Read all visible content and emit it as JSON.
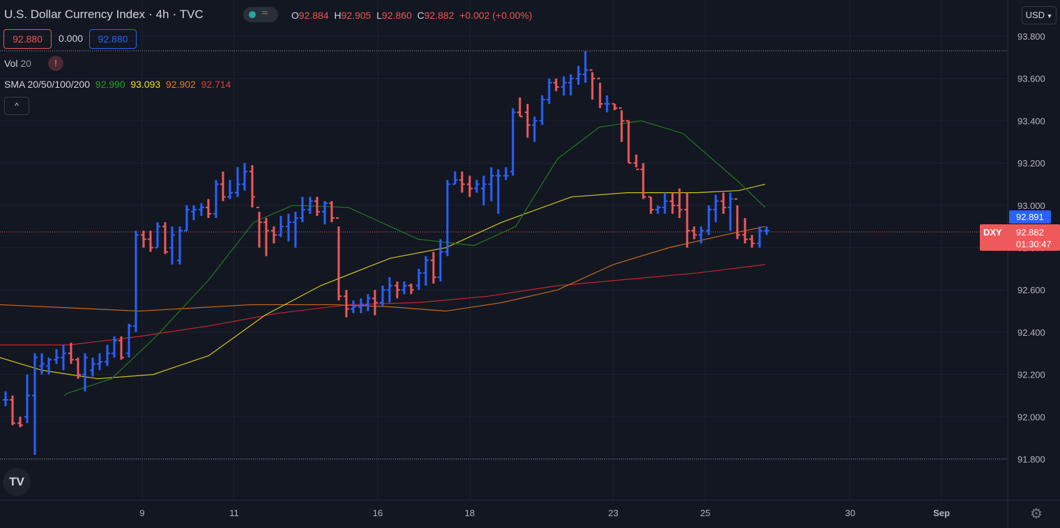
{
  "header": {
    "symbol_title": "U.S. Dollar Currency Index",
    "separator": "·",
    "interval": "4h",
    "exchange": "TVC",
    "ohlc": {
      "o_label": "O",
      "o_value": "92.884",
      "h_label": "H",
      "h_value": "92.905",
      "l_label": "L",
      "l_value": "92.860",
      "c_label": "C",
      "c_value": "92.882",
      "change": "+0.002 (+0.00%)"
    }
  },
  "quote_boxes": {
    "sell": "92.880",
    "spread": "0.000",
    "buy": "92.880"
  },
  "volume": {
    "label": "Vol",
    "length": "20",
    "warning_icon": "exclamation-icon"
  },
  "sma": {
    "label": "SMA 20/50/100/200",
    "v20": "92.990",
    "v50": "93.093",
    "v100": "92.902",
    "v200": "92.714"
  },
  "controls": {
    "collapse_icon": "chevron-up-icon",
    "currency": "USD",
    "currency_icon": "chevron-down-icon",
    "settings_icon": "gear-icon",
    "logo": "TV",
    "logo_icon": "tradingview-logo-icon"
  },
  "colors": {
    "background": "#131722",
    "up": "#2962ff",
    "down": "#f0595b",
    "sma20": "#1f7a1f",
    "sma50": "#d4c714",
    "sma100": "#c96a1c",
    "sma200": "#c8252b",
    "grid": "#1e2230"
  },
  "chart_data": {
    "type": "ohlc-bar",
    "y_ticks": [
      "93.800",
      "93.600",
      "93.400",
      "93.200",
      "93.000",
      "92.800",
      "92.600",
      "92.400",
      "92.200",
      "92.000",
      "91.800"
    ],
    "ylim": [
      91.8,
      93.8
    ],
    "x_ticks": [
      "9",
      "11",
      "16",
      "18",
      "23",
      "25",
      "30",
      "Sep"
    ],
    "price_labels": {
      "ask": "92.891",
      "symbol": "DXY",
      "last": "92.882",
      "countdown": "01:30:47"
    },
    "bars": [
      [
        92.08,
        92.12,
        92.05,
        92.08
      ],
      [
        92.08,
        92.1,
        91.96,
        91.97
      ],
      [
        91.97,
        92.0,
        91.95,
        91.96
      ],
      [
        92.0,
        92.2,
        91.97,
        92.1
      ],
      [
        92.1,
        92.3,
        91.82,
        92.28
      ],
      [
        92.24,
        92.3,
        92.2,
        92.25
      ],
      [
        92.24,
        92.28,
        92.2,
        92.27
      ],
      [
        92.27,
        92.32,
        92.25,
        92.28
      ],
      [
        92.28,
        92.34,
        92.22,
        92.3
      ],
      [
        92.3,
        92.35,
        92.25,
        92.27
      ],
      [
        92.27,
        92.28,
        92.18,
        92.2
      ],
      [
        92.2,
        92.3,
        92.12,
        92.28
      ],
      [
        92.22,
        92.28,
        92.19,
        92.25
      ],
      [
        92.25,
        92.3,
        92.22,
        92.26
      ],
      [
        92.26,
        92.34,
        92.24,
        92.3
      ],
      [
        92.3,
        92.38,
        92.28,
        92.36
      ],
      [
        92.36,
        92.38,
        92.27,
        92.28
      ],
      [
        92.3,
        92.44,
        92.28,
        92.43
      ],
      [
        92.43,
        92.88,
        92.4,
        92.86
      ],
      [
        92.86,
        92.88,
        92.8,
        92.84
      ],
      [
        92.84,
        92.88,
        92.78,
        92.8
      ],
      [
        92.8,
        92.92,
        92.8,
        92.9
      ],
      [
        92.9,
        92.92,
        92.77,
        92.78
      ],
      [
        92.8,
        92.9,
        92.72,
        92.86
      ],
      [
        92.74,
        92.9,
        92.72,
        92.88
      ],
      [
        92.88,
        93.0,
        92.88,
        92.98
      ],
      [
        92.97,
        93.0,
        92.93,
        92.98
      ],
      [
        92.98,
        93.01,
        92.95,
        92.99
      ],
      [
        92.99,
        93.03,
        92.94,
        92.96
      ],
      [
        92.96,
        93.12,
        92.94,
        93.1
      ],
      [
        93.1,
        93.16,
        93.02,
        93.04
      ],
      [
        93.04,
        93.12,
        93.03,
        93.06
      ],
      [
        93.06,
        93.18,
        93.04,
        93.1
      ],
      [
        93.1,
        93.2,
        93.07,
        93.16
      ],
      [
        93.16,
        93.19,
        92.99,
        93.04
      ],
      [
        92.99,
        92.97,
        92.8,
        92.92
      ],
      [
        92.92,
        92.94,
        92.76,
        92.88
      ],
      [
        92.88,
        92.9,
        92.82,
        92.86
      ],
      [
        92.86,
        92.95,
        92.85,
        92.9
      ],
      [
        92.9,
        92.96,
        92.83,
        92.92
      ],
      [
        92.92,
        92.97,
        92.8,
        92.94
      ],
      [
        92.94,
        93.04,
        92.92,
        92.98
      ],
      [
        92.98,
        93.04,
        92.96,
        93.02
      ],
      [
        93.02,
        93.04,
        92.95,
        92.97
      ],
      [
        92.97,
        93.02,
        92.91,
        93.01
      ],
      [
        93.01,
        93.02,
        92.92,
        92.94
      ],
      [
        92.94,
        92.9,
        92.55,
        92.57
      ],
      [
        92.57,
        92.6,
        92.47,
        92.51
      ],
      [
        92.51,
        92.55,
        92.49,
        92.52
      ],
      [
        92.52,
        92.56,
        92.49,
        92.53
      ],
      [
        92.53,
        92.58,
        92.5,
        92.56
      ],
      [
        92.56,
        92.6,
        92.48,
        92.54
      ],
      [
        92.54,
        92.62,
        92.52,
        92.6
      ],
      [
        92.6,
        92.66,
        92.54,
        92.62
      ],
      [
        92.62,
        92.64,
        92.56,
        92.6
      ],
      [
        92.6,
        92.64,
        92.58,
        92.62
      ],
      [
        92.62,
        92.63,
        92.58,
        92.6
      ],
      [
        92.62,
        92.7,
        92.6,
        92.68
      ],
      [
        92.68,
        92.76,
        92.62,
        92.74
      ],
      [
        92.74,
        92.78,
        92.63,
        92.66
      ],
      [
        92.66,
        92.84,
        92.64,
        92.78
      ],
      [
        92.78,
        93.12,
        92.76,
        93.1
      ],
      [
        93.1,
        93.16,
        93.1,
        93.12
      ],
      [
        93.12,
        93.16,
        93.06,
        93.1
      ],
      [
        93.1,
        93.14,
        93.04,
        93.08
      ],
      [
        93.08,
        93.12,
        93.06,
        93.1
      ],
      [
        93.08,
        93.14,
        93.0,
        93.1
      ],
      [
        93.1,
        93.18,
        93.02,
        93.14
      ],
      [
        93.14,
        93.17,
        92.96,
        93.14
      ],
      [
        93.14,
        93.18,
        93.12,
        93.14
      ],
      [
        93.16,
        93.46,
        93.14,
        93.44
      ],
      [
        93.44,
        93.51,
        93.42,
        93.42
      ],
      [
        93.44,
        93.48,
        93.32,
        93.38
      ],
      [
        93.38,
        93.42,
        93.3,
        93.4
      ],
      [
        93.4,
        93.52,
        93.38,
        93.5
      ],
      [
        93.5,
        93.6,
        93.48,
        93.58
      ],
      [
        93.58,
        93.6,
        93.54,
        93.56
      ],
      [
        93.56,
        93.61,
        93.52,
        93.58
      ],
      [
        93.58,
        93.62,
        93.52,
        93.6
      ],
      [
        93.6,
        93.66,
        93.57,
        93.62
      ],
      [
        93.62,
        93.73,
        93.58,
        93.64
      ],
      [
        93.64,
        93.63,
        93.5,
        93.6
      ],
      [
        93.6,
        93.58,
        93.46,
        93.48
      ],
      [
        93.48,
        93.52,
        93.44,
        93.48
      ],
      [
        93.48,
        93.48,
        93.45,
        93.46
      ],
      [
        93.46,
        93.45,
        93.3,
        93.4
      ],
      [
        93.4,
        93.4,
        93.2,
        93.2
      ],
      [
        93.2,
        93.24,
        93.18,
        93.17
      ],
      [
        93.17,
        93.2,
        93.03,
        93.04
      ],
      [
        93.04,
        93.04,
        92.96,
        92.98
      ],
      [
        92.98,
        93.0,
        92.96,
        92.99
      ],
      [
        92.99,
        93.06,
        92.96,
        93.02
      ],
      [
        93.02,
        93.06,
        92.96,
        93.0
      ],
      [
        93.0,
        93.08,
        92.94,
        92.98
      ],
      [
        92.98,
        93.06,
        92.8,
        92.88
      ],
      [
        92.88,
        92.9,
        92.84,
        92.86
      ],
      [
        92.86,
        92.9,
        92.82,
        92.88
      ],
      [
        92.88,
        93.0,
        92.86,
        92.98
      ],
      [
        92.98,
        93.05,
        92.92,
        93.02
      ],
      [
        93.02,
        93.06,
        92.96,
        92.99
      ],
      [
        92.99,
        93.06,
        92.88,
        93.03
      ],
      [
        93.03,
        93.0,
        92.84,
        92.86
      ],
      [
        92.86,
        92.94,
        92.82,
        92.84
      ],
      [
        92.84,
        92.86,
        92.8,
        92.82
      ],
      [
        92.82,
        92.9,
        92.8,
        92.88
      ],
      [
        92.88,
        92.9,
        92.86,
        92.88
      ]
    ],
    "sma20": [
      [
        92.5,
        92.1
      ],
      [
        96,
        92.11
      ],
      [
        160,
        92.18
      ],
      [
        224,
        92.38
      ],
      [
        300,
        92.65
      ],
      [
        364,
        92.92
      ],
      [
        420,
        93.0
      ],
      [
        500,
        92.99
      ],
      [
        600,
        92.84
      ],
      [
        680,
        92.81
      ],
      [
        740,
        92.9
      ],
      [
        800,
        93.22
      ],
      [
        860,
        93.37
      ],
      [
        920,
        93.4
      ],
      [
        980,
        93.34
      ],
      [
        1060,
        93.11
      ],
      [
        1098,
        92.99
      ]
    ],
    "sma50": [
      [
        0,
        92.28
      ],
      [
        60,
        92.22
      ],
      [
        140,
        92.18
      ],
      [
        220,
        92.2
      ],
      [
        300,
        92.29
      ],
      [
        380,
        92.48
      ],
      [
        460,
        92.62
      ],
      [
        560,
        92.75
      ],
      [
        640,
        92.8
      ],
      [
        720,
        92.92
      ],
      [
        820,
        93.04
      ],
      [
        900,
        93.06
      ],
      [
        1000,
        93.06
      ],
      [
        1060,
        93.07
      ],
      [
        1098,
        93.1
      ]
    ],
    "sma100": [
      [
        0,
        92.53
      ],
      [
        200,
        92.5
      ],
      [
        360,
        92.53
      ],
      [
        480,
        92.53
      ],
      [
        560,
        92.52
      ],
      [
        640,
        92.5
      ],
      [
        720,
        92.54
      ],
      [
        800,
        92.6
      ],
      [
        880,
        92.72
      ],
      [
        960,
        92.8
      ],
      [
        1040,
        92.86
      ],
      [
        1098,
        92.9
      ]
    ],
    "sma200": [
      [
        0,
        92.34
      ],
      [
        100,
        92.34
      ],
      [
        200,
        92.38
      ],
      [
        300,
        92.43
      ],
      [
        400,
        92.49
      ],
      [
        500,
        92.53
      ],
      [
        600,
        92.54
      ],
      [
        700,
        92.57
      ],
      [
        800,
        92.62
      ],
      [
        900,
        92.65
      ],
      [
        1000,
        92.68
      ],
      [
        1098,
        92.72
      ]
    ]
  }
}
